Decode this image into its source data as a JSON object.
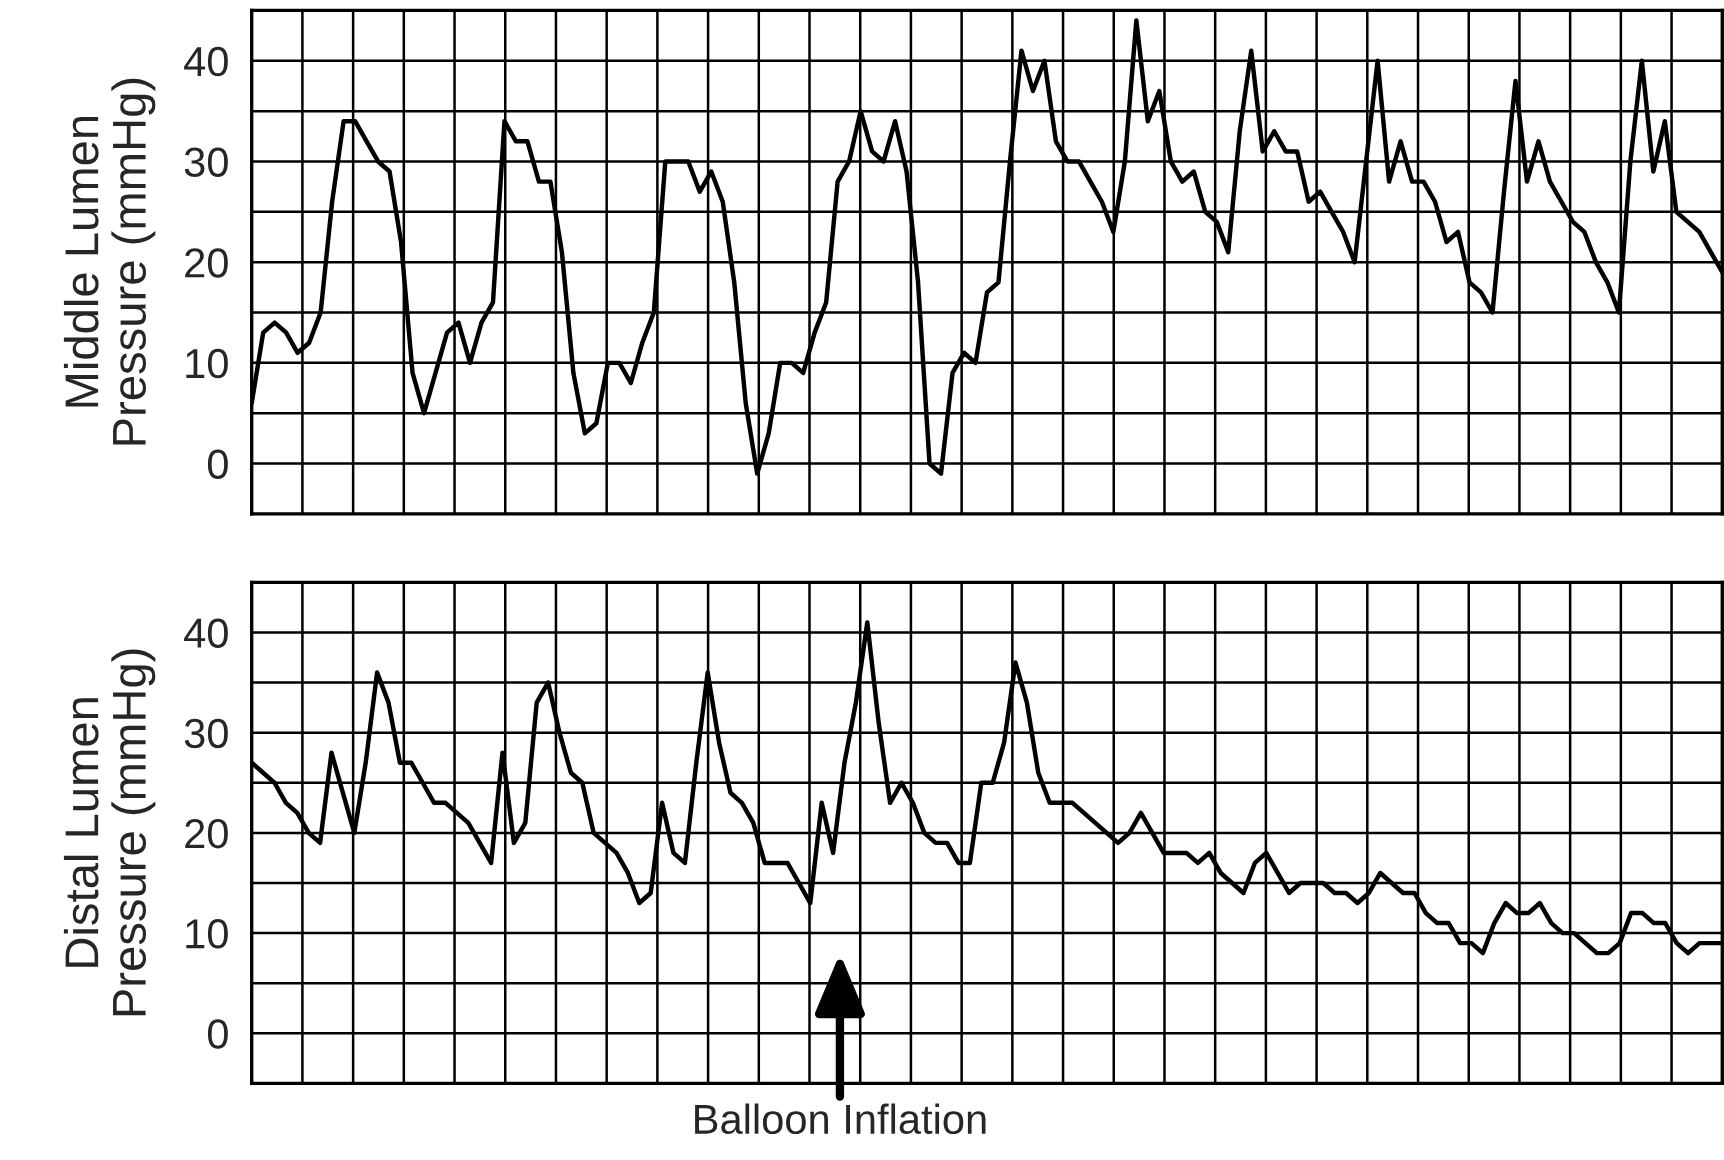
{
  "chart_data": [
    {
      "type": "line",
      "ylabel": "Middle Lumen\nPressure (mmHg)",
      "categories": [
        null,
        null,
        null,
        null,
        null,
        null,
        null,
        null,
        null,
        null,
        null,
        null,
        null,
        null,
        null,
        null,
        null,
        null,
        null,
        null,
        null,
        null,
        null,
        null,
        null,
        null,
        null,
        null,
        null,
        null,
        null,
        null,
        null,
        null,
        null,
        null,
        null,
        null,
        null,
        null,
        null,
        null,
        null,
        null,
        null,
        null,
        null,
        null,
        null,
        null,
        null,
        null,
        null,
        null,
        null,
        null,
        null,
        null,
        null,
        null,
        null,
        null,
        null,
        null,
        null,
        null,
        null,
        null,
        null,
        null,
        null,
        null,
        null,
        null,
        null,
        null,
        null,
        null,
        null,
        null,
        null,
        null,
        null,
        null,
        null,
        null,
        null,
        null,
        null,
        null,
        null,
        null,
        null,
        null,
        null,
        null,
        null,
        null,
        null,
        null,
        null,
        null,
        null,
        null,
        null,
        null,
        null,
        null,
        null,
        null,
        null,
        null,
        null,
        null,
        null,
        null,
        null,
        null,
        null,
        null,
        null,
        null,
        null,
        null,
        null,
        null,
        null,
        null,
        null
      ],
      "series": [
        {
          "color": "#000000",
          "values": [
            6,
            13,
            14,
            13,
            11,
            12,
            15,
            26,
            34,
            34,
            32,
            30,
            29,
            22,
            9,
            5,
            9,
            13,
            14,
            10,
            14,
            16,
            34,
            32,
            32,
            28,
            28,
            21,
            9,
            3,
            4,
            10,
            10,
            8,
            12,
            15,
            30,
            30,
            30,
            27,
            29,
            26,
            18,
            6,
            -1,
            3,
            10,
            10,
            9,
            13,
            16,
            28,
            30,
            35,
            31,
            30,
            34,
            29,
            18,
            0,
            -1,
            9,
            11,
            10,
            17,
            18,
            30,
            41,
            37,
            40,
            32,
            30,
            30,
            28,
            26,
            23,
            30,
            44,
            34,
            37,
            30,
            28,
            29,
            25,
            24,
            21,
            33,
            41,
            31,
            33,
            31,
            31,
            26,
            27,
            25,
            23,
            20,
            30,
            40,
            28,
            32,
            28,
            28,
            26,
            22,
            23,
            18,
            17,
            15,
            27,
            38,
            28,
            32,
            28,
            26,
            24,
            23,
            20,
            18,
            15,
            30,
            40,
            29,
            34,
            25,
            24,
            23,
            21,
            19
          ]
        }
      ],
      "ylim": [
        -5,
        45
      ],
      "yticks": [
        0,
        {
          "value": 5,
          "label": null
        },
        10,
        {
          "value": 15,
          "label": null
        },
        20,
        {
          "value": 25,
          "label": null
        },
        30,
        {
          "value": 35,
          "label": null
        },
        40
      ],
      "grid": true,
      "tick_labels": "y",
      "line_style": "solid"
    },
    {
      "type": "line",
      "ylabel": "Distal Lumen\nPressure (mmHg)",
      "categories": [
        null,
        null,
        null,
        null,
        null,
        null,
        null,
        null,
        null,
        null,
        null,
        null,
        null,
        null,
        null,
        null,
        null,
        null,
        null,
        null,
        null,
        null,
        null,
        null,
        null,
        null,
        null,
        null,
        null,
        null,
        null,
        null,
        null,
        null,
        null,
        null,
        null,
        null,
        null,
        null,
        null,
        null,
        null,
        null,
        null,
        null,
        null,
        null,
        null,
        null,
        null,
        null,
        null,
        null,
        null,
        null,
        null,
        null,
        null,
        null,
        null,
        null,
        null,
        null,
        null,
        null,
        null,
        null,
        null,
        null,
        null,
        null,
        null,
        null,
        null,
        null,
        null,
        null,
        null,
        null,
        null,
        null,
        null,
        null,
        null,
        null,
        null,
        null,
        null,
        null,
        null,
        null,
        null,
        null,
        null,
        null,
        null,
        null,
        null,
        null,
        null,
        null,
        null,
        null,
        null,
        null,
        null,
        null,
        null,
        null,
        null,
        null,
        null,
        null,
        null,
        null,
        null,
        null,
        null,
        null,
        null,
        null,
        null,
        null,
        null,
        null,
        null,
        null,
        null,
        null
      ],
      "series": [
        {
          "color": "#000000",
          "values": [
            27,
            26,
            25,
            23,
            22,
            20,
            19,
            28,
            24,
            20,
            27,
            36,
            33,
            27,
            27,
            25,
            23,
            23,
            22,
            21,
            19,
            17,
            28,
            19,
            21,
            33,
            35,
            30,
            26,
            25,
            20,
            19,
            18,
            16,
            13,
            14,
            23,
            18,
            17,
            27,
            36,
            29,
            24,
            23,
            21,
            17,
            17,
            17,
            15,
            13,
            23,
            18,
            27,
            33,
            41,
            31,
            23,
            25,
            23,
            20,
            19,
            19,
            17,
            17,
            25,
            25,
            29,
            37,
            33,
            26,
            23,
            23,
            23,
            22,
            21,
            20,
            19,
            20,
            22,
            20,
            18,
            18,
            18,
            17,
            18,
            16,
            15,
            14,
            17,
            18,
            16,
            14,
            15,
            15,
            15,
            14,
            14,
            13,
            14,
            16,
            15,
            14,
            14,
            12,
            11,
            11,
            9,
            9,
            8,
            11,
            13,
            12,
            12,
            13,
            11,
            10,
            10,
            9,
            8,
            8,
            9,
            12,
            12,
            11,
            11,
            9,
            8,
            9,
            9,
            9
          ]
        }
      ],
      "ylim": [
        -5,
        45
      ],
      "yticks": [
        0,
        {
          "value": 5,
          "label": null
        },
        10,
        {
          "value": 15,
          "label": null
        },
        20,
        {
          "value": 25,
          "label": null
        },
        30,
        {
          "value": 35,
          "label": null
        },
        40
      ],
      "grid": true,
      "tick_labels": "y",
      "line_style": "solid",
      "annotations": [
        "Balloon Inflation"
      ]
    }
  ]
}
